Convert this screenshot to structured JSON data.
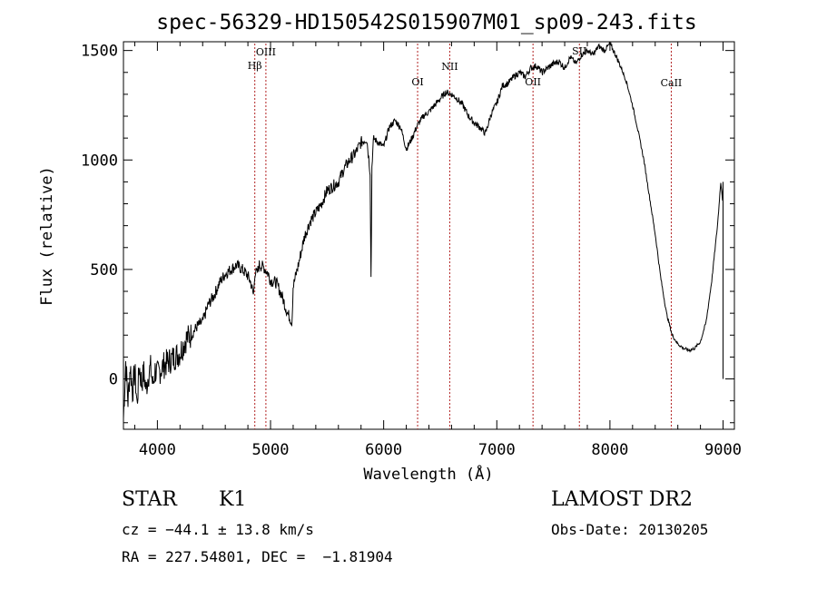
{
  "chart_data": {
    "type": "line",
    "title": "spec-56329-HD150542S015907M01_sp09-243.fits",
    "xlabel": "Wavelength (Å)",
    "ylabel": "Flux (relative)",
    "xlim": [
      3700,
      9100
    ],
    "ylim": [
      -230,
      1540
    ],
    "xticks": [
      4000,
      5000,
      6000,
      7000,
      8000,
      9000
    ],
    "yticks": [
      0,
      500,
      1000,
      1500
    ],
    "grid": false,
    "line_color": "#000000",
    "marker_color": "#b22222",
    "spectrum": {
      "x": [
        3700,
        3720,
        3740,
        3760,
        3780,
        3800,
        3820,
        3840,
        3860,
        3880,
        3900,
        3920,
        3940,
        3960,
        3980,
        4000,
        4050,
        4100,
        4150,
        4200,
        4250,
        4300,
        4350,
        4400,
        4450,
        4500,
        4550,
        4600,
        4650,
        4700,
        4750,
        4800,
        4825,
        4850,
        4861,
        4880,
        4900,
        4940,
        4980,
        5000,
        5050,
        5100,
        5150,
        5190,
        5200,
        5250,
        5300,
        5350,
        5400,
        5450,
        5500,
        5550,
        5600,
        5650,
        5700,
        5750,
        5800,
        5850,
        5880,
        5889,
        5895,
        5910,
        5950,
        6000,
        6050,
        6100,
        6150,
        6200,
        6250,
        6300,
        6350,
        6400,
        6450,
        6500,
        6550,
        6600,
        6650,
        6700,
        6750,
        6800,
        6850,
        6900,
        6950,
        7000,
        7050,
        7100,
        7150,
        7200,
        7250,
        7300,
        7350,
        7400,
        7450,
        7500,
        7550,
        7600,
        7650,
        7700,
        7750,
        7800,
        7850,
        7900,
        7950,
        8000,
        8050,
        8100,
        8150,
        8200,
        8250,
        8300,
        8350,
        8400,
        8450,
        8500,
        8550,
        8600,
        8650,
        8700,
        8750,
        8800,
        8850,
        8900,
        8950,
        8980,
        9000,
        9002
      ],
      "y": [
        -180,
        80,
        -100,
        60,
        -60,
        40,
        -120,
        60,
        -20,
        30,
        -50,
        20,
        50,
        -30,
        40,
        20,
        60,
        80,
        100,
        120,
        180,
        200,
        240,
        260,
        340,
        380,
        440,
        480,
        500,
        520,
        500,
        470,
        440,
        380,
        490,
        480,
        520,
        510,
        480,
        450,
        440,
        380,
        300,
        260,
        420,
        530,
        650,
        720,
        760,
        800,
        860,
        880,
        900,
        960,
        1000,
        1030,
        1080,
        1100,
        950,
        400,
        960,
        1100,
        1080,
        1060,
        1150,
        1180,
        1150,
        1050,
        1100,
        1160,
        1200,
        1220,
        1250,
        1280,
        1310,
        1300,
        1280,
        1250,
        1200,
        1170,
        1150,
        1120,
        1210,
        1260,
        1340,
        1350,
        1380,
        1400,
        1380,
        1420,
        1430,
        1400,
        1420,
        1440,
        1450,
        1420,
        1470,
        1440,
        1480,
        1500,
        1480,
        1520,
        1500,
        1530,
        1480,
        1420,
        1350,
        1250,
        1130,
        1000,
        830,
        660,
        460,
        300,
        200,
        160,
        140,
        130,
        140,
        170,
        260,
        450,
        700,
        900,
        800,
        0
      ]
    },
    "lines": [
      {
        "label": "Hβ",
        "x": 4861
      },
      {
        "label": "OIII",
        "x": 4959
      },
      {
        "label": "OI",
        "x": 6300
      },
      {
        "label": "NII",
        "x": 6584
      },
      {
        "label": "OII",
        "x": 7320
      },
      {
        "label": "SII",
        "x": 7730
      },
      {
        "label": "CaII",
        "x": 8542
      }
    ]
  },
  "info": {
    "class": "STAR",
    "subclass": "K1",
    "survey": "LAMOST DR2",
    "cz": "cz = −44.1 ± 13.8 km/s",
    "obs_date": "Obs-Date: 20130205",
    "radec": "RA = 227.54801, DEC =  −1.81904"
  }
}
